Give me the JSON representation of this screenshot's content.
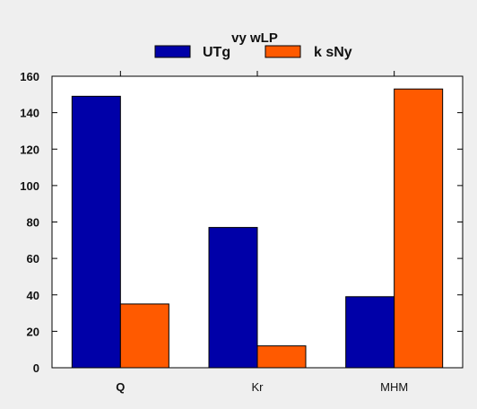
{
  "chart_data": {
    "type": "bar",
    "title": "vy wLP",
    "xlabel": "",
    "ylabel": "",
    "categories": [
      "Q",
      "Kr",
      "MHM"
    ],
    "series": [
      {
        "name": "UTg",
        "values": [
          149,
          77,
          39
        ],
        "color": "#0000a8"
      },
      {
        "name": "k sNy",
        "values": [
          35,
          12,
          153
        ],
        "color": "#ff5a00"
      }
    ],
    "ylim": [
      0,
      160
    ],
    "yticks": [
      0,
      20,
      40,
      60,
      80,
      100,
      120,
      140,
      160
    ],
    "grid": false,
    "legend": "top-center"
  }
}
